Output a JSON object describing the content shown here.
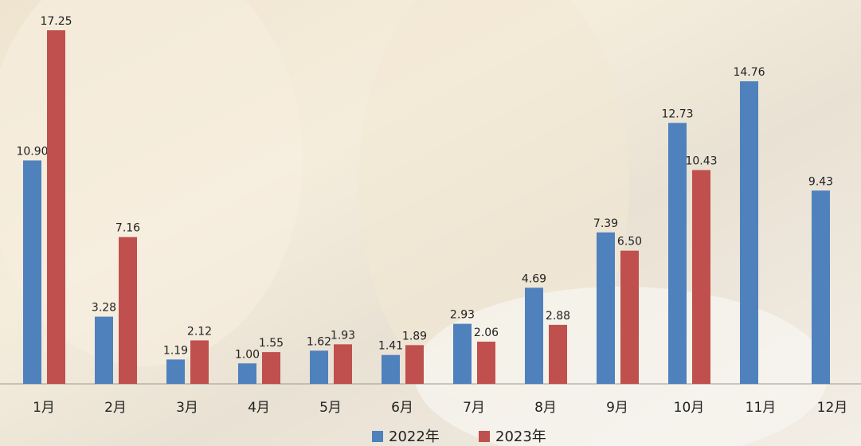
{
  "chart_data": {
    "type": "bar",
    "categories": [
      "1月",
      "2月",
      "3月",
      "4月",
      "5月",
      "6月",
      "7月",
      "8月",
      "9月",
      "10月",
      "11月",
      "12月"
    ],
    "series": [
      {
        "name": "2022年",
        "color": "#4f81bd",
        "values": [
          10.9,
          3.28,
          1.19,
          1.0,
          1.62,
          1.41,
          2.93,
          4.69,
          7.39,
          12.73,
          14.76,
          9.43
        ],
        "value_labels": [
          "10.90",
          "3.28",
          "1.19",
          "1.00",
          "1.62",
          "1.41",
          "2.93",
          "4.69",
          "7.39",
          "12.73",
          "14.76",
          "9.43"
        ]
      },
      {
        "name": "2023年",
        "color": "#c0504d",
        "values": [
          17.25,
          7.16,
          2.12,
          1.55,
          1.93,
          1.89,
          2.06,
          2.88,
          6.5,
          10.43,
          null,
          null
        ],
        "value_labels": [
          "17.25",
          "7.16",
          "2.12",
          "1.55",
          "1.93",
          "1.89",
          "2.06",
          "2.88",
          "6.50",
          "10.43",
          null,
          null
        ]
      }
    ],
    "legend": "bottom"
  }
}
